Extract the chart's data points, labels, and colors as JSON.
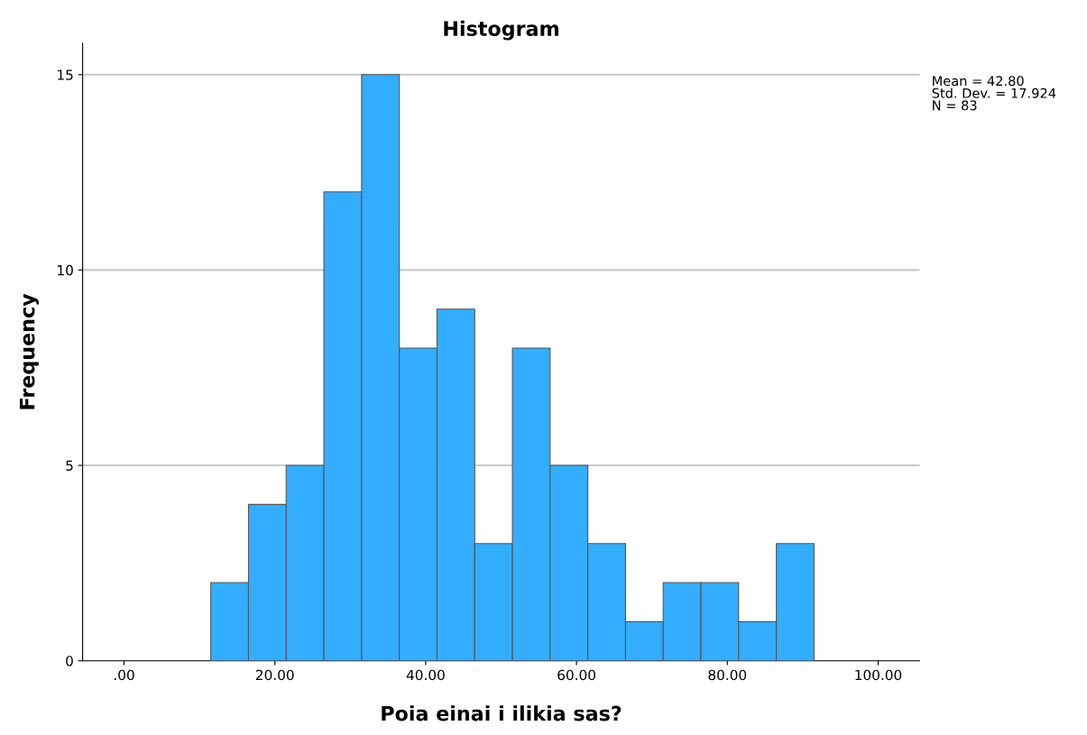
{
  "chart_data": {
    "type": "histogram",
    "title": "Histogram",
    "xlabel": "Poia einai i ilikia sas?",
    "ylabel": "Frequency",
    "bins": [
      11.5,
      16.5,
      21.5,
      26.5,
      31.5,
      36.5,
      41.5,
      46.5,
      51.5,
      56.5,
      61.5,
      66.5,
      71.5,
      76.5,
      81.5,
      86.5,
      91.5
    ],
    "values": [
      2,
      4,
      5,
      12,
      15,
      8,
      9,
      3,
      8,
      5,
      3,
      1,
      2,
      2,
      1,
      3
    ],
    "color": "#33adff",
    "xlim": [
      -5.5,
      105.5
    ],
    "xticks": [
      {
        "value": 0,
        "label": ".00"
      },
      {
        "value": 20,
        "label": "20.00"
      },
      {
        "value": 40,
        "label": "40.00"
      },
      {
        "value": 60,
        "label": "60.00"
      },
      {
        "value": 80,
        "label": "80.00"
      },
      {
        "value": 100,
        "label": "100.00"
      }
    ],
    "ylim": [
      0,
      15.8
    ],
    "yticks": [
      0,
      5,
      10,
      15
    ],
    "grid": "y",
    "annotations": [
      "Mean = 42.80\nStd. Dev. = 17.924\nN = 83"
    ]
  }
}
